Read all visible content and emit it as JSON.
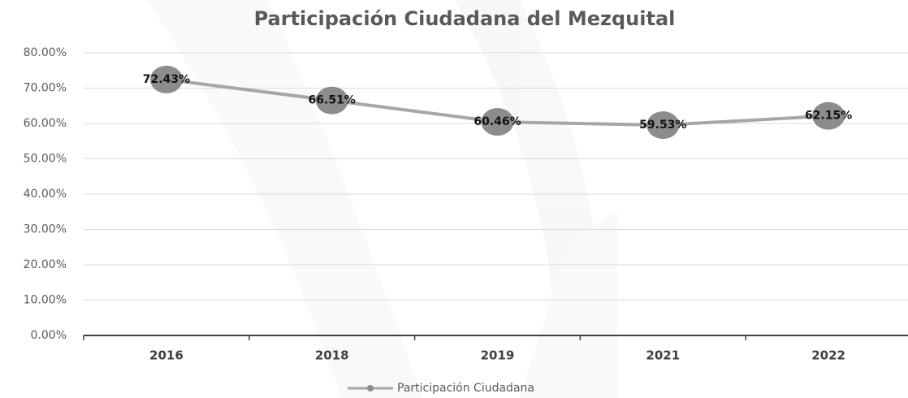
{
  "chart_data": {
    "type": "line",
    "title": "Participación Ciudadana del Mezquital",
    "categories": [
      "2016",
      "2018",
      "2019",
      "2021",
      "2022"
    ],
    "series": [
      {
        "name": "Participación Ciudadana",
        "color": "#a6a6a6",
        "marker_color": "#8c8c8c",
        "values": [
          72.43,
          66.51,
          60.46,
          59.53,
          62.15
        ],
        "value_labels": [
          "72.43%",
          "66.51%",
          "60.46%",
          "59.53%",
          "62.15%"
        ]
      }
    ],
    "ylim": [
      0,
      80
    ],
    "yticks": [
      {
        "value": 0,
        "label": "0.00%"
      },
      {
        "value": 10,
        "label": "10.00%"
      },
      {
        "value": 20,
        "label": "20.00%"
      },
      {
        "value": 30,
        "label": "30.00%"
      },
      {
        "value": 40,
        "label": "40.00%"
      },
      {
        "value": 50,
        "label": "50.00%"
      },
      {
        "value": 60,
        "label": "60.00%"
      },
      {
        "value": 70,
        "label": "70.00%"
      },
      {
        "value": 80,
        "label": "80.00%"
      }
    ],
    "grid": true,
    "legend": "bottom"
  }
}
